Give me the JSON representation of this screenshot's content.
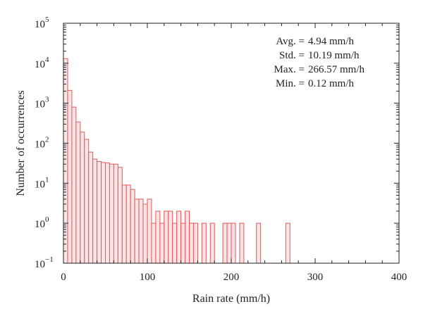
{
  "chart_data": {
    "type": "bar",
    "xlabel": "Rain rate (mm/h)",
    "ylabel": "Number of occurrences",
    "xlim": [
      0,
      400
    ],
    "ylim": [
      0.1,
      100000
    ],
    "yscale": "log",
    "grid": false,
    "x_ticks": [
      "0",
      "100",
      "200",
      "300",
      "400"
    ],
    "y_ticks": [
      {
        "base": "10",
        "exp": "−1"
      },
      {
        "base": "10",
        "exp": "0"
      },
      {
        "base": "10",
        "exp": "1"
      },
      {
        "base": "10",
        "exp": "2"
      },
      {
        "base": "10",
        "exp": "3"
      },
      {
        "base": "10",
        "exp": "4"
      },
      {
        "base": "10",
        "exp": "5"
      }
    ],
    "bin_width": 5,
    "bin_starts": [
      0,
      5,
      10,
      15,
      20,
      25,
      30,
      35,
      40,
      45,
      50,
      55,
      60,
      65,
      70,
      75,
      80,
      85,
      90,
      95,
      100,
      105,
      110,
      115,
      120,
      125,
      130,
      135,
      140,
      145,
      150,
      155,
      160,
      165,
      170,
      175,
      180,
      185,
      190,
      195,
      200,
      205,
      210,
      215,
      220,
      225,
      230,
      235,
      240,
      245,
      250,
      255,
      260,
      265,
      270
    ],
    "counts": [
      13000,
      2100,
      800,
      340,
      190,
      125,
      60,
      40,
      35,
      33,
      32,
      30,
      30,
      25,
      9,
      9,
      7,
      4,
      4,
      3,
      4,
      1,
      2,
      1,
      2,
      2,
      1,
      2,
      1,
      2,
      1,
      1,
      0,
      1,
      0,
      1,
      0,
      0,
      1,
      1,
      1,
      0,
      1,
      0,
      0,
      0,
      1,
      0,
      0,
      0,
      0,
      0,
      0,
      1,
      0
    ],
    "bar_fill": "#fde3e3",
    "bar_stroke": "#e05a5a",
    "stats": [
      {
        "label": "Avg. =",
        "value": "4.94 mm/h"
      },
      {
        "label": "Std. =",
        "value": "10.19 mm/h"
      },
      {
        "label": "Max. =",
        "value": "266.57 mm/h"
      },
      {
        "label": "Min. =",
        "value": "0.12 mm/h"
      }
    ]
  }
}
